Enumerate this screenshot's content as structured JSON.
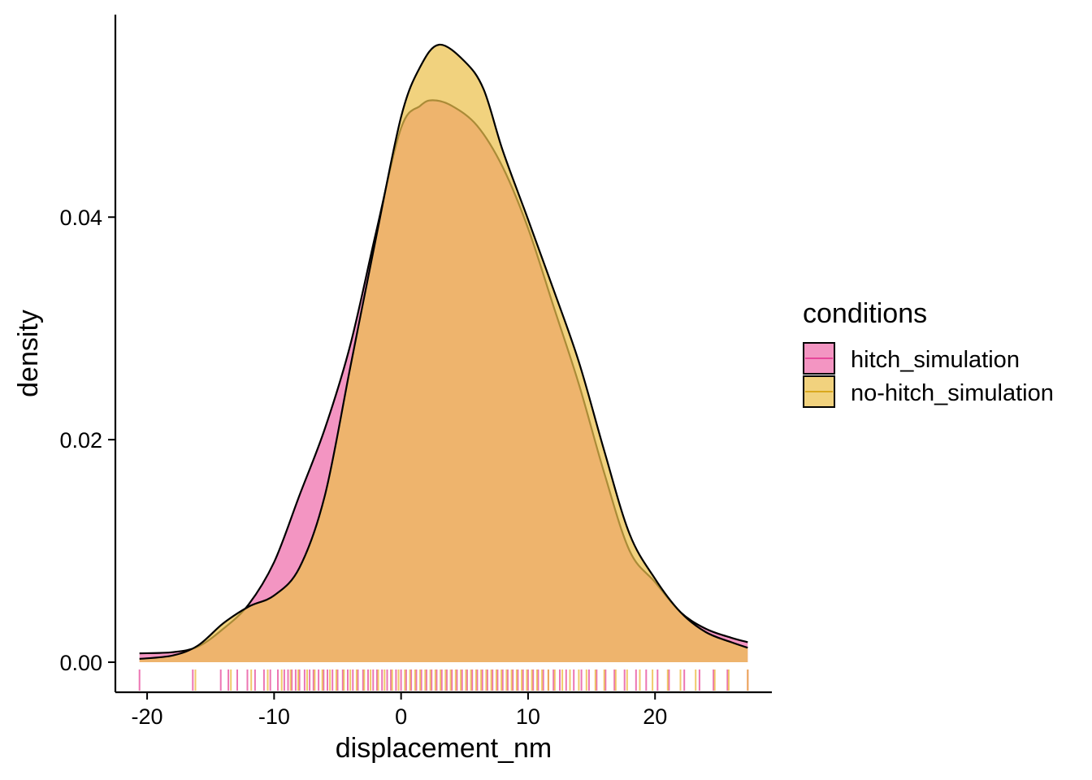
{
  "chart_data": {
    "type": "area",
    "xlabel": "displacement_nm",
    "ylabel": "density",
    "xlim": [
      -22.5,
      29.2
    ],
    "ylim": [
      -0.0027,
      0.0582
    ],
    "xticks": [
      -20,
      -10,
      0,
      10,
      20
    ],
    "xtick_labels": [
      "-20",
      "-10",
      "0",
      "10",
      "20"
    ],
    "yticks": [
      0.0,
      0.02,
      0.04
    ],
    "ytick_labels": [
      "0.00",
      "0.02",
      "0.04"
    ],
    "grid": false,
    "legend": {
      "title": "conditions",
      "position": "right",
      "entries": [
        "hitch_simulation",
        "no-hitch_simulation"
      ]
    },
    "series": [
      {
        "name": "hitch_simulation",
        "fill": "#EE6CAA",
        "line": "#E6479A",
        "points": [
          [
            -20.6,
            0.0008
          ],
          [
            -18.0,
            0.0009
          ],
          [
            -16.0,
            0.0014
          ],
          [
            -14.0,
            0.003
          ],
          [
            -12.0,
            0.0052
          ],
          [
            -10.0,
            0.009
          ],
          [
            -8.0,
            0.015
          ],
          [
            -6.0,
            0.021
          ],
          [
            -4.0,
            0.0285
          ],
          [
            -2.0,
            0.0385
          ],
          [
            0.0,
            0.048
          ],
          [
            1.5,
            0.05
          ],
          [
            2.5,
            0.0505
          ],
          [
            4.0,
            0.05
          ],
          [
            6.0,
            0.0482
          ],
          [
            8.0,
            0.0445
          ],
          [
            10.0,
            0.039
          ],
          [
            12.0,
            0.032
          ],
          [
            14.0,
            0.025
          ],
          [
            16.0,
            0.017
          ],
          [
            18.0,
            0.01
          ],
          [
            20.0,
            0.0072
          ],
          [
            22.0,
            0.0045
          ],
          [
            24.0,
            0.003
          ],
          [
            26.0,
            0.0022
          ],
          [
            27.3,
            0.0018
          ]
        ]
      },
      {
        "name": "no-hitch_simulation",
        "fill": "#EBC14C",
        "line": "#D9A81E",
        "points": [
          [
            -20.6,
            0.0003
          ],
          [
            -18.0,
            0.0006
          ],
          [
            -16.0,
            0.0015
          ],
          [
            -14.0,
            0.0035
          ],
          [
            -12.0,
            0.005
          ],
          [
            -10.0,
            0.006
          ],
          [
            -8.0,
            0.0085
          ],
          [
            -6.0,
            0.015
          ],
          [
            -4.0,
            0.0265
          ],
          [
            -2.0,
            0.038
          ],
          [
            0.0,
            0.049
          ],
          [
            1.5,
            0.0535
          ],
          [
            3.0,
            0.0555
          ],
          [
            5.0,
            0.054
          ],
          [
            6.5,
            0.0515
          ],
          [
            8.0,
            0.046
          ],
          [
            10.0,
            0.0398
          ],
          [
            12.0,
            0.0335
          ],
          [
            14.0,
            0.027
          ],
          [
            16.0,
            0.019
          ],
          [
            18.0,
            0.0115
          ],
          [
            20.0,
            0.0075
          ],
          [
            22.0,
            0.0045
          ],
          [
            24.0,
            0.0027
          ],
          [
            26.0,
            0.0018
          ],
          [
            27.3,
            0.0013
          ]
        ]
      }
    ],
    "rug": [
      {
        "series": "hitch_simulation",
        "color": "#E6479A",
        "x": [
          -20.6,
          -16.4,
          -14.2,
          -13.6,
          -12.9,
          -12.1,
          -11.5,
          -10.8,
          -10.3,
          -9.7,
          -9.2,
          -8.9,
          -8.6,
          -8.3,
          -8.0,
          -7.6,
          -7.2,
          -6.9,
          -6.5,
          -6.1,
          -5.8,
          -5.4,
          -5.0,
          -4.6,
          -4.2,
          -3.8,
          -3.4,
          -3.0,
          -2.6,
          -2.2,
          -1.9,
          -1.5,
          -1.1,
          -0.8,
          -0.4,
          0.0,
          0.4,
          0.8,
          1.2,
          1.6,
          2.0,
          2.4,
          2.8,
          3.2,
          3.6,
          4.0,
          4.4,
          4.8,
          5.2,
          5.6,
          6.0,
          6.4,
          6.8,
          7.2,
          7.6,
          8.0,
          8.4,
          8.8,
          9.2,
          9.6,
          10.0,
          10.4,
          10.8,
          11.2,
          11.6,
          12.0,
          12.5,
          13.0,
          13.6,
          14.2,
          14.8,
          15.4,
          16.1,
          16.8,
          17.6,
          18.5,
          19.3,
          20.2,
          21.1,
          22.3,
          23.5,
          24.6,
          25.7,
          27.3
        ]
      },
      {
        "series": "no-hitch_simulation",
        "color": "#EBB83A",
        "x": [
          -16.2,
          -13.4,
          -11.8,
          -10.5,
          -9.4,
          -8.7,
          -8.1,
          -7.4,
          -6.8,
          -6.2,
          -5.6,
          -5.1,
          -4.5,
          -4.0,
          -3.5,
          -2.9,
          -2.4,
          -1.8,
          -1.3,
          -0.7,
          -0.2,
          0.3,
          0.7,
          1.1,
          1.5,
          1.9,
          2.3,
          2.7,
          3.1,
          3.5,
          3.9,
          4.3,
          4.7,
          5.1,
          5.5,
          5.9,
          6.3,
          6.7,
          7.1,
          7.5,
          7.9,
          8.3,
          8.7,
          9.1,
          9.5,
          9.9,
          10.3,
          10.7,
          11.1,
          11.6,
          12.1,
          12.7,
          13.3,
          14.0,
          14.6,
          15.3,
          16.0,
          16.9,
          17.8,
          18.8,
          19.8,
          21.0,
          22.0,
          23.2,
          24.7,
          25.8,
          27.3
        ]
      }
    ]
  }
}
